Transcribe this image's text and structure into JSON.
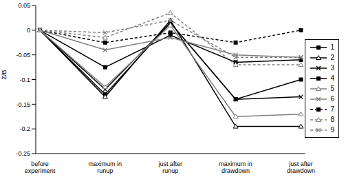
{
  "chart_data": {
    "type": "line",
    "y_label": "Z/B",
    "categories": [
      "before experiment",
      "maximum in runup",
      "just after runup",
      "maximum in drawdown",
      "just after drawdown"
    ],
    "ylim": [
      -0.25,
      0.05
    ],
    "yticks": [
      -0.25,
      -0.2,
      -0.15,
      -0.1,
      -0.05,
      0,
      0.05
    ],
    "grid": false,
    "legend": "right",
    "series": [
      {
        "name": "1",
        "color": "#000000",
        "marker": "square",
        "line_style": "solid",
        "values": [
          0,
          -0.13,
          0.015,
          -0.14,
          -0.1
        ]
      },
      {
        "name": "2",
        "color": "#000000",
        "marker": "triangle",
        "line_style": "solid",
        "values": [
          0,
          -0.135,
          0.02,
          -0.195,
          -0.195
        ]
      },
      {
        "name": "3",
        "color": "#000000",
        "marker": "cross",
        "line_style": "solid",
        "values": [
          0,
          -0.12,
          0.015,
          -0.14,
          -0.135
        ]
      },
      {
        "name": "4",
        "color": "#000000",
        "marker": "square",
        "line_style": "solid",
        "values": [
          0,
          -0.075,
          -0.01,
          -0.065,
          -0.06
        ]
      },
      {
        "name": "5",
        "color": "#808080",
        "marker": "triangle",
        "line_style": "solid",
        "values": [
          0,
          -0.115,
          0.01,
          -0.175,
          -0.17
        ]
      },
      {
        "name": "6",
        "color": "#808080",
        "marker": "cross",
        "line_style": "solid",
        "values": [
          0,
          -0.04,
          -0.015,
          -0.05,
          -0.055
        ]
      },
      {
        "name": "7",
        "color": "#000000",
        "marker": "square",
        "line_style": "dashed",
        "values": [
          0,
          -0.025,
          -0.005,
          -0.025,
          0
        ]
      },
      {
        "name": "8",
        "color": "#808080",
        "marker": "triangle",
        "line_style": "dashed",
        "values": [
          0,
          -0.015,
          0.035,
          -0.07,
          -0.07
        ]
      },
      {
        "name": "9",
        "color": "#808080",
        "marker": "cross",
        "line_style": "dashed",
        "values": [
          0,
          -0.005,
          0.02,
          -0.055,
          -0.055
        ]
      }
    ]
  }
}
